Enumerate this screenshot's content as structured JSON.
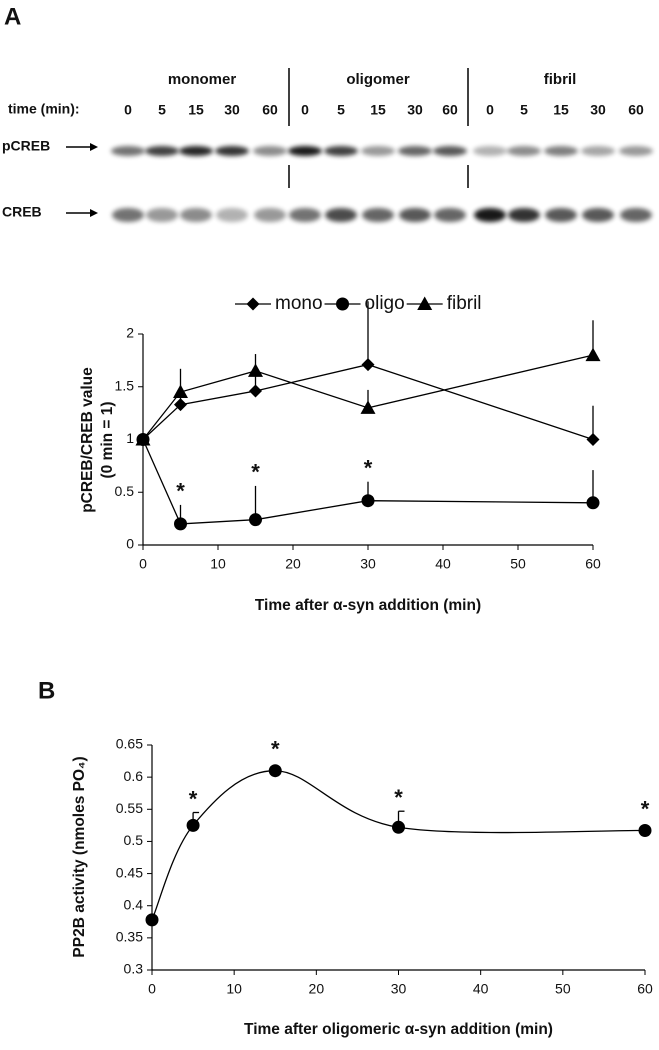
{
  "panel_labels": [
    "A",
    "B"
  ],
  "blot": {
    "time_label": "time (min):",
    "groups": [
      {
        "name": "monomer",
        "times": [
          "0",
          "5",
          "15",
          "30",
          "60"
        ]
      },
      {
        "name": "oligomer",
        "times": [
          "0",
          "5",
          "15",
          "30",
          "60"
        ]
      },
      {
        "name": "fibril",
        "times": [
          "0",
          "5",
          "15",
          "30",
          "60"
        ]
      }
    ],
    "rows": [
      "pCREB",
      "CREB"
    ]
  },
  "chart_data": [
    {
      "type": "line",
      "ylabel": [
        "pCREB/CREB value",
        "(0 min = 1)"
      ],
      "xlabel": "Time after α-syn addition (min)",
      "xlim": [
        0,
        60
      ],
      "xticks": [
        0,
        10,
        20,
        30,
        40,
        50,
        60
      ],
      "ylim": [
        0,
        2
      ],
      "yticks": [
        0,
        0.5,
        1,
        1.5,
        2
      ],
      "legend": "top",
      "smooth": false,
      "series": [
        {
          "name": "mono",
          "marker": "diamond",
          "color": "#000000",
          "x": [
            0,
            5,
            15,
            30,
            60
          ],
          "values": [
            1,
            1.33,
            1.46,
            1.71,
            1.0
          ],
          "errors": [
            0,
            0.1,
            0.2,
            0.6,
            0.32
          ]
        },
        {
          "name": "oligo",
          "marker": "circle",
          "color": "#000000",
          "x": [
            0,
            5,
            15,
            30,
            60
          ],
          "values": [
            1,
            0.2,
            0.24,
            0.42,
            0.4
          ],
          "errors": [
            0,
            0.18,
            0.32,
            0.18,
            0.31
          ],
          "significance": [
            null,
            "*",
            "*",
            "*",
            null
          ]
        },
        {
          "name": "fibril",
          "marker": "triangle",
          "color": "#000000",
          "x": [
            0,
            5,
            15,
            30,
            60
          ],
          "values": [
            1,
            1.45,
            1.65,
            1.3,
            1.8
          ],
          "errors": [
            0,
            0.22,
            0.16,
            0.17,
            0.33
          ]
        }
      ]
    },
    {
      "type": "line",
      "ylabel": [
        "PP2B activity (nmoles PO₄)"
      ],
      "xlabel": "Time after oligomeric α-syn addition (min)",
      "xlim": [
        0,
        60
      ],
      "xticks": [
        0,
        10,
        20,
        30,
        40,
        50,
        60
      ],
      "ylim": [
        0.3,
        0.65
      ],
      "yticks": [
        0.3,
        0.35,
        0.4,
        0.45,
        0.5,
        0.55,
        0.6,
        0.65
      ],
      "smooth": true,
      "series": [
        {
          "marker": "circle",
          "color": "#000000",
          "x": [
            0,
            5,
            15,
            30,
            60
          ],
          "values": [
            0.378,
            0.525,
            0.61,
            0.522,
            0.517
          ],
          "errors": [
            0,
            0.02,
            0,
            0.025,
            0
          ],
          "significance": [
            null,
            "*",
            "*",
            "*",
            "*"
          ]
        }
      ]
    }
  ]
}
